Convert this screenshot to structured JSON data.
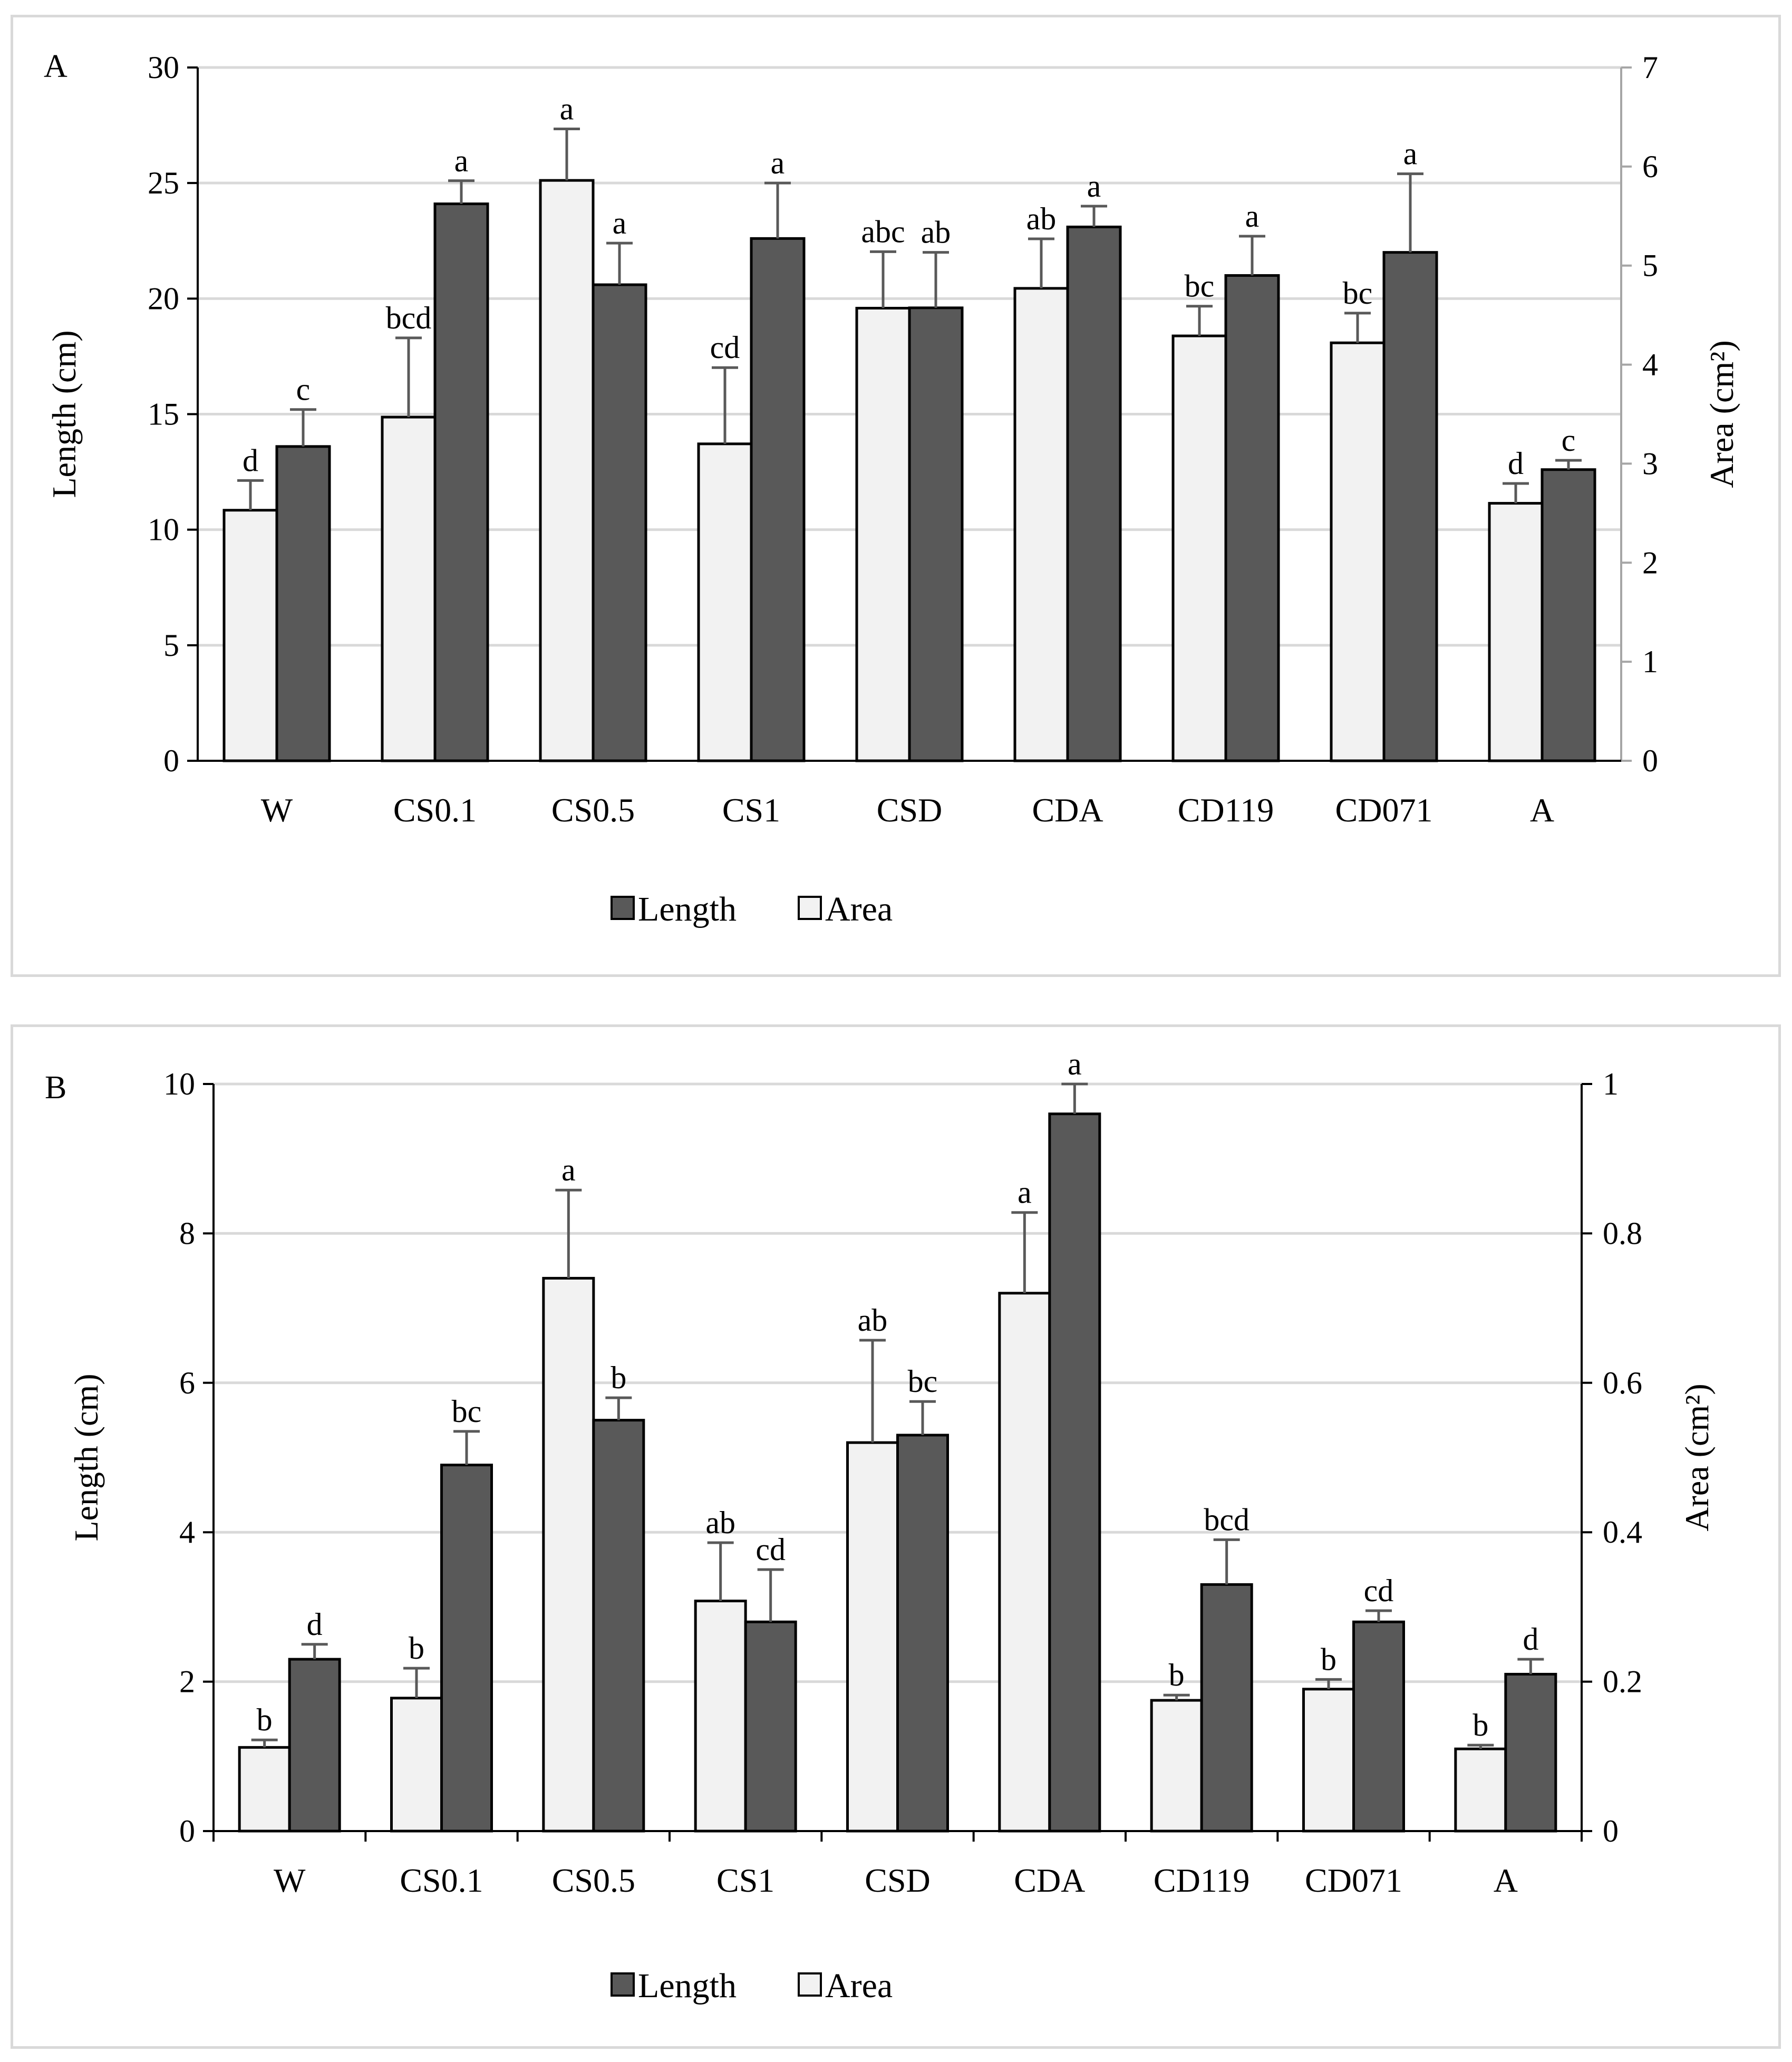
{
  "colors": {
    "length_fill": "#595959",
    "area_fill": "#f2f2f2",
    "bar_stroke": "#000000",
    "error_bar": "#595959",
    "gridline": "#d9d9d9",
    "axis": "#000000",
    "right_axis": "#a6a6a6",
    "frame": "#d9d9d9"
  },
  "legend": {
    "length_label": "Length",
    "area_label": "Area"
  },
  "chart_data": [
    {
      "panel_label": "A",
      "type": "bar",
      "categories": [
        "W",
        "CS0.1",
        "CS0.5",
        "CS1",
        "CSD",
        "CDA",
        "CD119",
        "CD071",
        "A"
      ],
      "ylabel_left": "Length (cm)",
      "ylabel_right": "Area (cm²)",
      "ylim_left": [
        0,
        30
      ],
      "ylim_right": [
        0,
        7
      ],
      "yticks_left": [
        "0",
        "5",
        "10",
        "15",
        "20",
        "25",
        "30"
      ],
      "yticks_right": [
        "0",
        "1",
        "2",
        "3",
        "4",
        "5",
        "6",
        "7"
      ],
      "series": [
        {
          "name": "Area",
          "axis": "right",
          "values": [
            2.53,
            3.47,
            5.86,
            3.2,
            4.57,
            4.77,
            4.29,
            4.22,
            2.6
          ],
          "errors": [
            0.3,
            0.8,
            0.52,
            0.77,
            0.57,
            0.5,
            0.3,
            0.3,
            0.2
          ],
          "letters": [
            "d",
            "bcd",
            "a",
            "cd",
            "abc",
            "ab",
            "bc",
            "bc",
            "d"
          ]
        },
        {
          "name": "Length",
          "axis": "left",
          "values": [
            13.6,
            24.1,
            20.6,
            22.6,
            19.6,
            23.1,
            21.0,
            22.0,
            12.6
          ],
          "errors": [
            1.6,
            1.0,
            1.8,
            2.4,
            2.4,
            0.9,
            1.7,
            3.4,
            0.4
          ],
          "letters": [
            "c",
            "a",
            "a",
            "a",
            "ab",
            "a",
            "a",
            "a",
            "c"
          ]
        }
      ]
    },
    {
      "panel_label": "B",
      "type": "bar",
      "categories": [
        "W",
        "CS0.1",
        "CS0.5",
        "CS1",
        "CSD",
        "CDA",
        "CD119",
        "CD071",
        "A"
      ],
      "ylabel_left": "Length (cm)",
      "ylabel_right": "Area (cm²)",
      "ylim_left": [
        0,
        10
      ],
      "ylim_right": [
        0,
        1
      ],
      "yticks_left": [
        "0",
        "2",
        "4",
        "6",
        "8",
        "10"
      ],
      "yticks_right": [
        "0",
        "0.2",
        "0.4",
        "0.6",
        "0.8",
        "1"
      ],
      "series": [
        {
          "name": "Area",
          "axis": "right",
          "values": [
            0.112,
            0.178,
            0.74,
            0.308,
            0.52,
            0.72,
            0.175,
            0.19,
            0.11
          ],
          "errors": [
            0.01,
            0.04,
            0.118,
            0.078,
            0.137,
            0.108,
            0.007,
            0.013,
            0.005
          ],
          "letters": [
            "b",
            "b",
            "a",
            "ab",
            "ab",
            "a",
            "b",
            "b",
            "b"
          ]
        },
        {
          "name": "Length",
          "axis": "left",
          "values": [
            2.3,
            4.9,
            5.5,
            2.8,
            5.3,
            9.6,
            3.3,
            2.8,
            2.1
          ],
          "errors": [
            0.2,
            0.45,
            0.3,
            0.7,
            0.45,
            0.4,
            0.6,
            0.15,
            0.2
          ],
          "letters": [
            "d",
            "bc",
            "b",
            "cd",
            "bc",
            "a",
            "bcd",
            "cd",
            "d"
          ]
        }
      ]
    }
  ]
}
